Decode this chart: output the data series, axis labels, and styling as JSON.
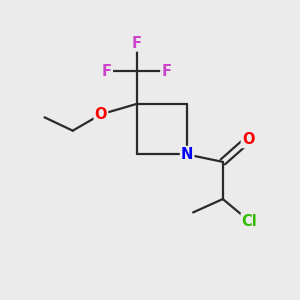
{
  "background_color": "#ebebeb",
  "bond_color": "#2a2a2a",
  "atom_colors": {
    "F": "#cc44cc",
    "O": "#ff0000",
    "N": "#0000ff",
    "Cl": "#33bb00",
    "C": "#2a2a2a"
  },
  "fig_width": 3.0,
  "fig_height": 3.0,
  "dpi": 100,
  "bond_lw": 1.6,
  "font_size": 10.5
}
